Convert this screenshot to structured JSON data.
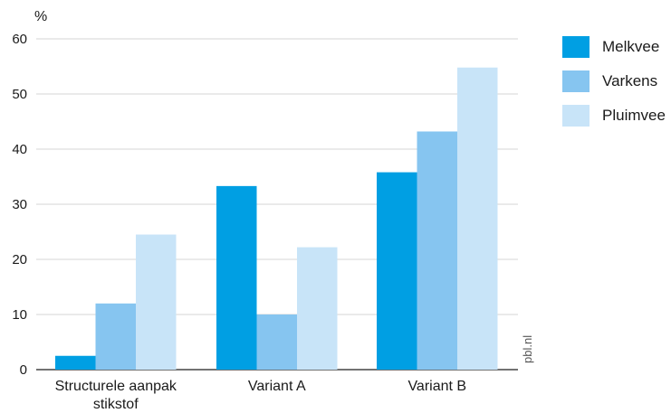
{
  "chart_data": {
    "type": "bar",
    "ylabel": "%",
    "ylim": [
      0,
      60
    ],
    "yticks": [
      "0",
      "10",
      "20",
      "30",
      "40",
      "50",
      "60"
    ],
    "categories": [
      [
        "Structurele aanpak",
        "stikstof"
      ],
      [
        "Variant A"
      ],
      [
        "Variant B"
      ]
    ],
    "series": [
      {
        "name": "Melkvee",
        "color": "#009fe3",
        "values": [
          2.5,
          33.3,
          35.8
        ]
      },
      {
        "name": "Varkens",
        "color": "#86c5f0",
        "values": [
          12.0,
          10.0,
          43.2
        ]
      },
      {
        "name": "Pluimvee",
        "color": "#c8e4f8",
        "values": [
          24.5,
          22.2,
          54.8
        ]
      }
    ],
    "grid": true,
    "legend_position": "top-right",
    "source": "pbl.nl"
  }
}
